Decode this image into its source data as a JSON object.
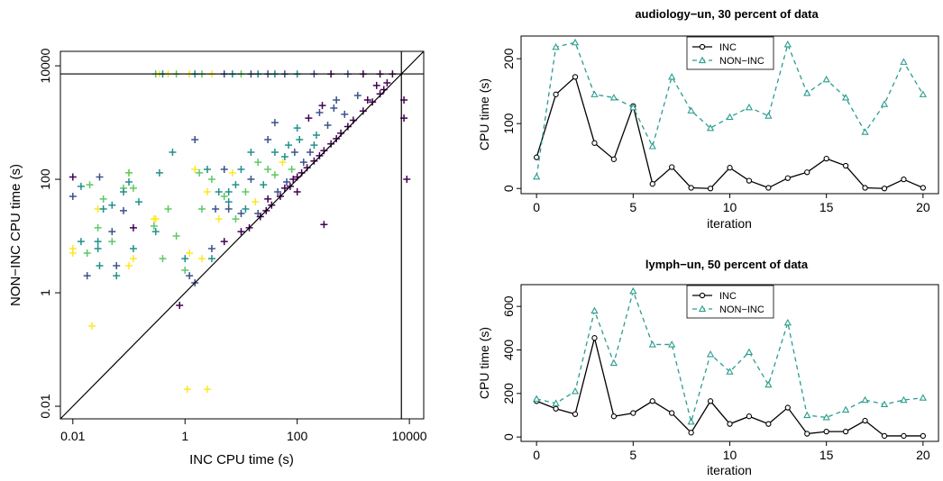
{
  "colors": {
    "inc": "#000000",
    "noninc": "#2a9d8f",
    "viridis": [
      "#440154",
      "#3b528b",
      "#21908c",
      "#5dc863",
      "#fde725"
    ]
  },
  "chart_data": [
    {
      "type": "scatter",
      "title": "",
      "xlabel": "INC CPU time (s)",
      "ylabel": "NON−INC CPU time (s)",
      "xscale": "log",
      "yscale": "log",
      "xlim": [
        0.006,
        18000
      ],
      "ylim": [
        0.006,
        18000
      ],
      "xticks": [
        0.01,
        1,
        100,
        10000
      ],
      "xtick_labels": [
        "0.01",
        "1",
        "100",
        "10000"
      ],
      "yticks": [
        0.01,
        1,
        100,
        10000
      ],
      "ytick_labels": [
        "0.01",
        "1",
        "100",
        "10000"
      ],
      "timeout_line": 7200,
      "diagonal": true,
      "points": [
        {
          "x": 0.01,
          "y": 110,
          "c": 0
        },
        {
          "x": 0.01,
          "y": 50,
          "c": 1
        },
        {
          "x": 0.01,
          "y": 6,
          "c": 4
        },
        {
          "x": 0.01,
          "y": 5,
          "c": 4
        },
        {
          "x": 0.014,
          "y": 75,
          "c": 2
        },
        {
          "x": 0.014,
          "y": 8,
          "c": 2
        },
        {
          "x": 0.018,
          "y": 2,
          "c": 1
        },
        {
          "x": 0.02,
          "y": 80,
          "c": 3
        },
        {
          "x": 0.018,
          "y": 5,
          "c": 3
        },
        {
          "x": 0.022,
          "y": 0.26,
          "c": 4
        },
        {
          "x": 0.028,
          "y": 30,
          "c": 4
        },
        {
          "x": 0.028,
          "y": 14,
          "c": 3
        },
        {
          "x": 0.028,
          "y": 8,
          "c": 2
        },
        {
          "x": 0.028,
          "y": 6,
          "c": 2
        },
        {
          "x": 0.03,
          "y": 3,
          "c": 2
        },
        {
          "x": 0.03,
          "y": 110,
          "c": 1
        },
        {
          "x": 0.035,
          "y": 45,
          "c": 3
        },
        {
          "x": 0.035,
          "y": 30,
          "c": 2
        },
        {
          "x": 0.05,
          "y": 35,
          "c": 2
        },
        {
          "x": 0.05,
          "y": 12,
          "c": 1
        },
        {
          "x": 0.05,
          "y": 8,
          "c": 3
        },
        {
          "x": 0.06,
          "y": 3,
          "c": 1
        },
        {
          "x": 0.06,
          "y": 2,
          "c": 2
        },
        {
          "x": 0.08,
          "y": 70,
          "c": 3
        },
        {
          "x": 0.08,
          "y": 60,
          "c": 2
        },
        {
          "x": 0.08,
          "y": 28,
          "c": 1
        },
        {
          "x": 0.1,
          "y": 130,
          "c": 4
        },
        {
          "x": 0.1,
          "y": 130,
          "c": 3
        },
        {
          "x": 0.1,
          "y": 90,
          "c": 2
        },
        {
          "x": 0.12,
          "y": 70,
          "c": 3
        },
        {
          "x": 0.12,
          "y": 14,
          "c": 0
        },
        {
          "x": 0.12,
          "y": 6,
          "c": 2
        },
        {
          "x": 0.1,
          "y": 3,
          "c": 4
        },
        {
          "x": 0.12,
          "y": 4,
          "c": 4
        },
        {
          "x": 0.15,
          "y": 40,
          "c": 2
        },
        {
          "x": 0.28,
          "y": 20,
          "c": 4
        },
        {
          "x": 0.28,
          "y": 15,
          "c": 3
        },
        {
          "x": 0.3,
          "y": 20,
          "c": 4
        },
        {
          "x": 0.3,
          "y": 12,
          "c": 2
        },
        {
          "x": 0.35,
          "y": 130,
          "c": 2
        },
        {
          "x": 0.4,
          "y": 4,
          "c": 3
        },
        {
          "x": 0.5,
          "y": 30,
          "c": 3
        },
        {
          "x": 0.6,
          "y": 300,
          "c": 2
        },
        {
          "x": 0.7,
          "y": 10,
          "c": 3
        },
        {
          "x": 0.8,
          "y": 0.6,
          "c": 0
        },
        {
          "x": 1,
          "y": 4,
          "c": 2
        },
        {
          "x": 1,
          "y": 2.5,
          "c": 3
        },
        {
          "x": 1.1,
          "y": 0.02,
          "c": 4
        },
        {
          "x": 1.2,
          "y": 5,
          "c": 4
        },
        {
          "x": 1.2,
          "y": 2,
          "c": 1
        },
        {
          "x": 1.5,
          "y": 1.5,
          "c": 1
        },
        {
          "x": 1.5,
          "y": 500,
          "c": 1
        },
        {
          "x": 1.5,
          "y": 150,
          "c": 4
        },
        {
          "x": 1.8,
          "y": 130,
          "c": 3
        },
        {
          "x": 2,
          "y": 4,
          "c": 4
        },
        {
          "x": 2.5,
          "y": 0.02,
          "c": 4
        },
        {
          "x": 2,
          "y": 30,
          "c": 3
        },
        {
          "x": 2.5,
          "y": 60,
          "c": 4
        },
        {
          "x": 2.5,
          "y": 150,
          "c": 2
        },
        {
          "x": 3,
          "y": 4,
          "c": 2
        },
        {
          "x": 3,
          "y": 6,
          "c": 1
        },
        {
          "x": 3,
          "y": 100,
          "c": 3
        },
        {
          "x": 3.5,
          "y": 30,
          "c": 1
        },
        {
          "x": 4,
          "y": 60,
          "c": 2
        },
        {
          "x": 4,
          "y": 20,
          "c": 4
        },
        {
          "x": 5,
          "y": 150,
          "c": 1
        },
        {
          "x": 5,
          "y": 8,
          "c": 0
        },
        {
          "x": 5,
          "y": 50,
          "c": 3
        },
        {
          "x": 6,
          "y": 40,
          "c": 2
        },
        {
          "x": 6,
          "y": 30,
          "c": 1
        },
        {
          "x": 7,
          "y": 130,
          "c": 4
        },
        {
          "x": 8,
          "y": 80,
          "c": 2
        },
        {
          "x": 8,
          "y": 20,
          "c": 3
        },
        {
          "x": 10,
          "y": 150,
          "c": 2
        },
        {
          "x": 10,
          "y": 25,
          "c": 1
        },
        {
          "x": 10,
          "y": 12,
          "c": 0
        },
        {
          "x": 12,
          "y": 60,
          "c": 3
        },
        {
          "x": 12,
          "y": 30,
          "c": 2
        },
        {
          "x": 14,
          "y": 14,
          "c": 0
        },
        {
          "x": 15,
          "y": 100,
          "c": 1
        },
        {
          "x": 18,
          "y": 40,
          "c": 4
        },
        {
          "x": 20,
          "y": 200,
          "c": 3
        },
        {
          "x": 20,
          "y": 25,
          "c": 1
        },
        {
          "x": 22,
          "y": 22,
          "c": 0
        },
        {
          "x": 25,
          "y": 80,
          "c": 2
        },
        {
          "x": 28,
          "y": 28,
          "c": 0
        },
        {
          "x": 30,
          "y": 500,
          "c": 1
        },
        {
          "x": 30,
          "y": 45,
          "c": 0
        },
        {
          "x": 35,
          "y": 35,
          "c": 0
        },
        {
          "x": 40,
          "y": 120,
          "c": 3
        },
        {
          "x": 40,
          "y": 300,
          "c": 2
        },
        {
          "x": 45,
          "y": 60,
          "c": 1
        },
        {
          "x": 50,
          "y": 50,
          "c": 0
        },
        {
          "x": 55,
          "y": 200,
          "c": 4
        },
        {
          "x": 60,
          "y": 70,
          "c": 0
        },
        {
          "x": 65,
          "y": 90,
          "c": 1
        },
        {
          "x": 70,
          "y": 400,
          "c": 2
        },
        {
          "x": 75,
          "y": 75,
          "c": 0
        },
        {
          "x": 80,
          "y": 150,
          "c": 3
        },
        {
          "x": 85,
          "y": 100,
          "c": 0
        },
        {
          "x": 90,
          "y": 300,
          "c": 1
        },
        {
          "x": 100,
          "y": 110,
          "c": 0
        },
        {
          "x": 100,
          "y": 60,
          "c": 0
        },
        {
          "x": 110,
          "y": 500,
          "c": 2
        },
        {
          "x": 120,
          "y": 130,
          "c": 0
        },
        {
          "x": 130,
          "y": 200,
          "c": 1
        },
        {
          "x": 150,
          "y": 160,
          "c": 0
        },
        {
          "x": 160,
          "y": 1200,
          "c": 0
        },
        {
          "x": 170,
          "y": 300,
          "c": 1
        },
        {
          "x": 200,
          "y": 210,
          "c": 0
        },
        {
          "x": 220,
          "y": 600,
          "c": 2
        },
        {
          "x": 250,
          "y": 260,
          "c": 0
        },
        {
          "x": 280,
          "y": 2000,
          "c": 0
        },
        {
          "x": 300,
          "y": 320,
          "c": 0
        },
        {
          "x": 300,
          "y": 16,
          "c": 0
        },
        {
          "x": 350,
          "y": 900,
          "c": 1
        },
        {
          "x": 400,
          "y": 420,
          "c": 0
        },
        {
          "x": 450,
          "y": 1800,
          "c": 1
        },
        {
          "x": 500,
          "y": 520,
          "c": 0
        },
        {
          "x": 600,
          "y": 650,
          "c": 0
        },
        {
          "x": 700,
          "y": 1400,
          "c": 1
        },
        {
          "x": 800,
          "y": 850,
          "c": 0
        },
        {
          "x": 1000,
          "y": 1100,
          "c": 0
        },
        {
          "x": 1200,
          "y": 3000,
          "c": 1
        },
        {
          "x": 1500,
          "y": 1600,
          "c": 0
        },
        {
          "x": 1800,
          "y": 2500,
          "c": 0
        },
        {
          "x": 2200,
          "y": 2300,
          "c": 0
        },
        {
          "x": 2600,
          "y": 4500,
          "c": 0
        },
        {
          "x": 3000,
          "y": 3200,
          "c": 0
        },
        {
          "x": 3500,
          "y": 3800,
          "c": 0
        },
        {
          "x": 4000,
          "y": 5000,
          "c": 0
        },
        {
          "x": 200,
          "y": 400,
          "c": 2
        },
        {
          "x": 60,
          "y": 250,
          "c": 2
        },
        {
          "x": 30,
          "y": 150,
          "c": 3
        },
        {
          "x": 15,
          "y": 300,
          "c": 2
        },
        {
          "x": 40,
          "y": 1000,
          "c": 1
        },
        {
          "x": 6,
          "y": 60,
          "c": 2
        },
        {
          "x": 100,
          "y": 800,
          "c": 2
        },
        {
          "x": 250,
          "y": 1500,
          "c": 1
        },
        {
          "x": 500,
          "y": 2500,
          "c": 1
        },
        {
          "x": 8000,
          "y": 2500,
          "c": 0
        },
        {
          "x": 8000,
          "y": 1200,
          "c": 0
        },
        {
          "x": 9000,
          "y": 100,
          "c": 0
        },
        {
          "x": 0.3,
          "y": 7200,
          "c": 3
        },
        {
          "x": 0.35,
          "y": 7200,
          "c": 4
        },
        {
          "x": 0.4,
          "y": 7200,
          "c": 2
        },
        {
          "x": 0.5,
          "y": 7200,
          "c": 4
        },
        {
          "x": 0.7,
          "y": 7200,
          "c": 3
        },
        {
          "x": 1.2,
          "y": 7200,
          "c": 4
        },
        {
          "x": 1.5,
          "y": 7200,
          "c": 2
        },
        {
          "x": 2,
          "y": 7200,
          "c": 3
        },
        {
          "x": 3,
          "y": 7200,
          "c": 4
        },
        {
          "x": 5,
          "y": 7200,
          "c": 1
        },
        {
          "x": 7,
          "y": 7200,
          "c": 2
        },
        {
          "x": 10,
          "y": 7200,
          "c": 3
        },
        {
          "x": 15,
          "y": 7200,
          "c": 1
        },
        {
          "x": 20,
          "y": 7200,
          "c": 2
        },
        {
          "x": 30,
          "y": 7200,
          "c": 1
        },
        {
          "x": 40,
          "y": 7200,
          "c": 2
        },
        {
          "x": 60,
          "y": 7200,
          "c": 1
        },
        {
          "x": 100,
          "y": 7200,
          "c": 2
        },
        {
          "x": 200,
          "y": 7200,
          "c": 1
        },
        {
          "x": 400,
          "y": 7200,
          "c": 0
        },
        {
          "x": 800,
          "y": 7200,
          "c": 1
        },
        {
          "x": 1500,
          "y": 7200,
          "c": 0
        },
        {
          "x": 3000,
          "y": 7200,
          "c": 0
        },
        {
          "x": 5000,
          "y": 7200,
          "c": 0
        }
      ]
    },
    {
      "type": "line",
      "title": "audiology−un, 30 percent of data",
      "xlabel": "iteration",
      "ylabel": "CPU time (s)",
      "xlim": [
        -0.8,
        20.8
      ],
      "ylim": [
        -8,
        235
      ],
      "xticks": [
        0,
        5,
        10,
        15,
        20
      ],
      "yticks": [
        0,
        100,
        200
      ],
      "x": [
        0,
        1,
        2,
        3,
        4,
        5,
        6,
        7,
        8,
        9,
        10,
        11,
        12,
        13,
        14,
        15,
        16,
        17,
        18,
        19,
        20
      ],
      "series": [
        {
          "name": "INC",
          "values": [
            48,
            145,
            172,
            70,
            45,
            127,
            7,
            33,
            1,
            0,
            32,
            12,
            1,
            16,
            25,
            46,
            35,
            1,
            0,
            14,
            1
          ]
        },
        {
          "name": "NON−INC",
          "values": [
            18,
            218,
            225,
            145,
            140,
            125,
            65,
            172,
            120,
            93,
            110,
            125,
            112,
            222,
            147,
            168,
            140,
            87,
            130,
            195,
            145
          ]
        }
      ]
    },
    {
      "type": "line",
      "title": "lymph−un, 50 percent of data",
      "xlabel": "iteration",
      "ylabel": "CPU time (s)",
      "xlim": [
        -0.8,
        20.8
      ],
      "ylim": [
        -20,
        700
      ],
      "xticks": [
        0,
        5,
        10,
        15,
        20
      ],
      "yticks": [
        0,
        200,
        400,
        600
      ],
      "x": [
        0,
        1,
        2,
        3,
        4,
        5,
        6,
        7,
        8,
        9,
        10,
        11,
        12,
        13,
        14,
        15,
        16,
        17,
        18,
        19,
        20
      ],
      "series": [
        {
          "name": "INC",
          "values": [
            165,
            130,
            105,
            455,
            95,
            110,
            165,
            110,
            20,
            165,
            60,
            95,
            60,
            135,
            15,
            25,
            25,
            75,
            5,
            5,
            5
          ]
        },
        {
          "name": "NON−INC",
          "values": [
            175,
            155,
            210,
            580,
            340,
            670,
            425,
            425,
            70,
            380,
            300,
            390,
            240,
            525,
            100,
            90,
            125,
            170,
            150,
            170,
            180
          ]
        }
      ]
    }
  ]
}
